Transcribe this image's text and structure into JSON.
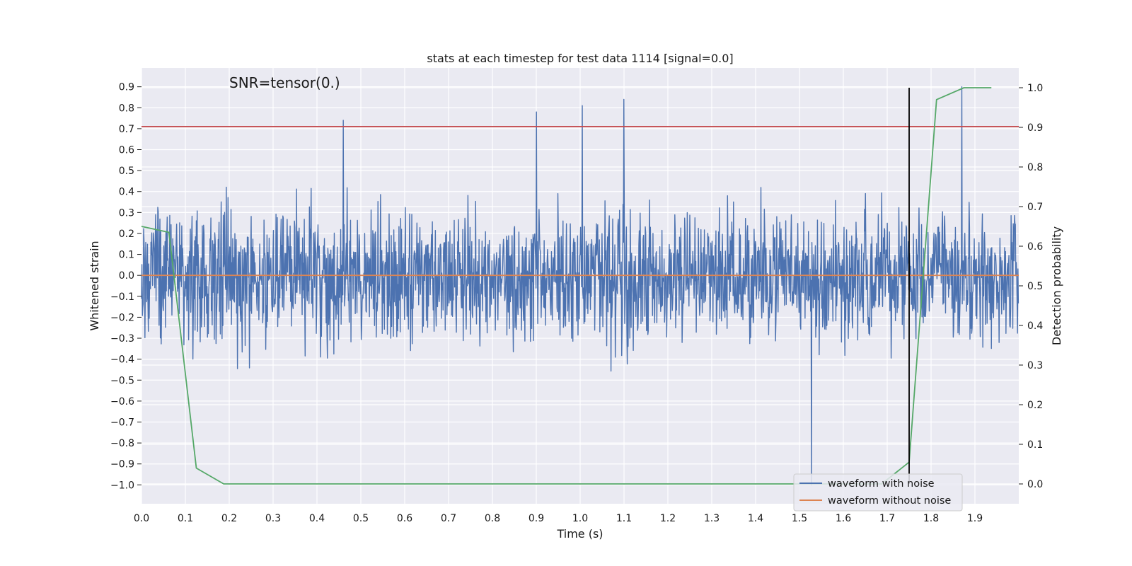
{
  "chart_data": {
    "type": "line",
    "title": "stats at each timestep for test data 1114 [signal=0.0]",
    "xlabel": "Time (s)",
    "ylabel": "Whitened strain",
    "y2label": "Detection probability",
    "xlim": [
      0.0,
      2.0
    ],
    "ylim": [
      -1.09,
      0.99
    ],
    "y2lim": [
      -0.05,
      1.05
    ],
    "x_ticks": [
      "0.0",
      "0.1",
      "0.2",
      "0.3",
      "0.4",
      "0.5",
      "0.6",
      "0.7",
      "0.8",
      "0.9",
      "1.0",
      "1.1",
      "1.2",
      "1.3",
      "1.4",
      "1.5",
      "1.6",
      "1.7",
      "1.8",
      "1.9"
    ],
    "y_ticks": [
      "0.9",
      "0.8",
      "0.7",
      "0.6",
      "0.5",
      "0.4",
      "0.3",
      "0.2",
      "0.1",
      "0.0",
      "−0.1",
      "−0.2",
      "−0.3",
      "−0.4",
      "−0.5",
      "−0.6",
      "−0.7",
      "−0.8",
      "−0.9",
      "−1.0"
    ],
    "y2_ticks": [
      "1.0",
      "0.9",
      "0.8",
      "0.7",
      "0.6",
      "0.5",
      "0.4",
      "0.3",
      "0.2",
      "0.1",
      "0.0"
    ],
    "annotation": "SNR=tensor(0.)",
    "grid": true,
    "legend_position": "lower-right",
    "series": [
      {
        "name": "waveform with noise",
        "color": "#4c72b0",
        "axis": "left",
        "samples": 2048,
        "range": [
          -1.0,
          0.9
        ],
        "note_peaks": [
          [
            0.46,
            0.74
          ],
          [
            0.9,
            0.78
          ],
          [
            1.005,
            0.81
          ],
          [
            1.1,
            0.84
          ],
          [
            1.87,
            0.9
          ],
          [
            1.527,
            -1.0
          ]
        ]
      },
      {
        "name": "waveform without noise",
        "color": "#dd8452",
        "axis": "left",
        "x": [
          0.0,
          2.0
        ],
        "y": [
          0.0,
          0.0
        ]
      },
      {
        "color": "#c44e52",
        "axis": "left",
        "x": [
          0.0,
          2.0
        ],
        "y": [
          0.71,
          0.71
        ]
      },
      {
        "color": "#55a868",
        "axis": "right",
        "x": [
          0.0,
          0.0625,
          0.125,
          0.1875,
          0.25,
          0.3125,
          0.375,
          0.4375,
          0.5,
          0.5625,
          0.625,
          0.6875,
          0.75,
          0.8125,
          0.875,
          0.9375,
          1.0,
          1.0625,
          1.125,
          1.1875,
          1.25,
          1.3125,
          1.375,
          1.4375,
          1.5,
          1.5625,
          1.625,
          1.6875,
          1.75,
          1.8125,
          1.875,
          1.9375
        ],
        "y": [
          0.65,
          0.635,
          0.04,
          0.0,
          0.0,
          0.0,
          0.0,
          0.0,
          0.0,
          0.0,
          0.0,
          0.0,
          0.0,
          0.0,
          0.0,
          0.0,
          0.0,
          0.0,
          0.0,
          0.0,
          0.0,
          0.0,
          0.0,
          0.0,
          0.0,
          0.0,
          0.0,
          0.0,
          0.055,
          0.97,
          1.0,
          1.0
        ]
      },
      {
        "color": "#000000",
        "axis": "right",
        "x": [
          1.75,
          1.75
        ],
        "y": [
          0.0,
          1.0
        ]
      }
    ]
  }
}
